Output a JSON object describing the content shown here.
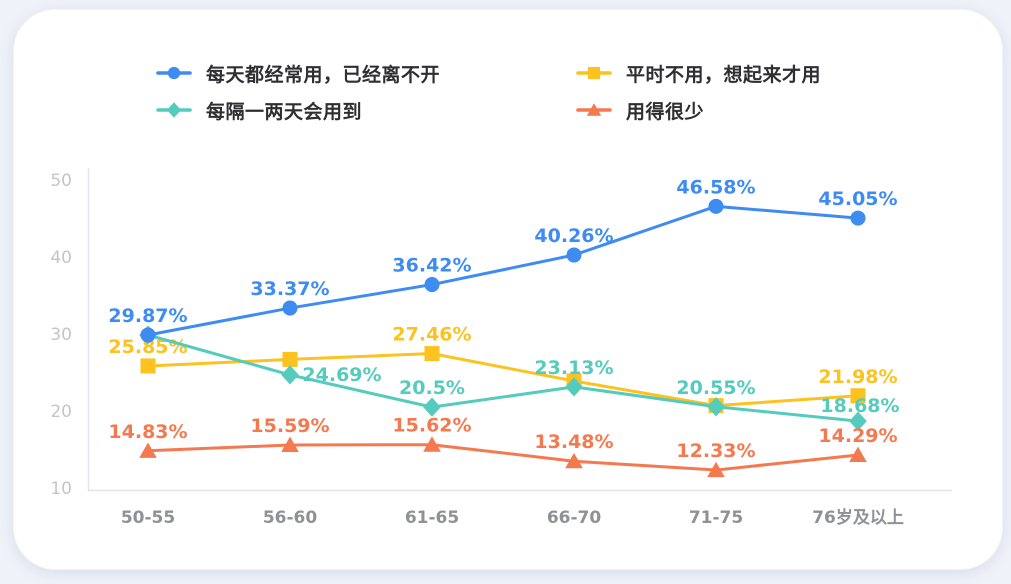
{
  "page": {
    "bg": "#EFF2F9",
    "card_bg": "#FFFFFF"
  },
  "legend": {
    "position": "top",
    "items": [
      {
        "label": "每天都经常用，已经离不开",
        "color": "#3E8CF2",
        "marker": "circle"
      },
      {
        "label": "平时不用，想起来才用",
        "color": "#FCC21F",
        "marker": "square"
      },
      {
        "label": "每隔一两天会用到",
        "color": "#55CBBD",
        "marker": "diamond"
      },
      {
        "label": "用得很少",
        "color": "#F5794F",
        "marker": "triangle"
      }
    ]
  },
  "chart_data": {
    "type": "line",
    "categories": [
      "50-55",
      "56-60",
      "61-65",
      "66-70",
      "71-75",
      "76岁及以上"
    ],
    "ylim": [
      10,
      50
    ],
    "yticks": [
      10,
      20,
      30,
      40,
      50
    ],
    "grid": false,
    "legend_position": "top",
    "series": [
      {
        "name": "每天都经常用，已经离不开",
        "color": "#3E8CF2",
        "marker": "circle",
        "z": 4,
        "values": [
          29.87,
          33.37,
          36.42,
          40.26,
          46.58,
          45.05
        ],
        "labels": [
          "29.87%",
          "33.37%",
          "36.42%",
          "40.26%",
          "46.58%",
          "45.05%"
        ]
      },
      {
        "name": "平时不用，想起来才用",
        "color": "#FCC21F",
        "marker": "square",
        "z": 1,
        "values": [
          25.85,
          26.7,
          27.46,
          23.9,
          20.7,
          21.98
        ],
        "labels": [
          "25.85%",
          null,
          "27.46%",
          null,
          null,
          "21.98%"
        ]
      },
      {
        "name": "每隔一两天会用到",
        "color": "#55CBBD",
        "marker": "diamond",
        "z": 2,
        "values": [
          29.87,
          24.69,
          20.5,
          23.13,
          20.55,
          18.68
        ],
        "labels": [
          null,
          "24.69%",
          "20.5%",
          "23.13%",
          "20.55%",
          "18.68%"
        ]
      },
      {
        "name": "用得很少",
        "color": "#F5794F",
        "marker": "triangle",
        "z": 3,
        "values": [
          14.83,
          15.59,
          15.62,
          13.48,
          12.33,
          14.29
        ],
        "labels": [
          "14.83%",
          "15.59%",
          "15.62%",
          "13.48%",
          "12.33%",
          "14.29%"
        ]
      }
    ],
    "label_offsets": {
      "2.1": [
        52,
        19
      ],
      "2.5": [
        2,
        4
      ]
    }
  }
}
